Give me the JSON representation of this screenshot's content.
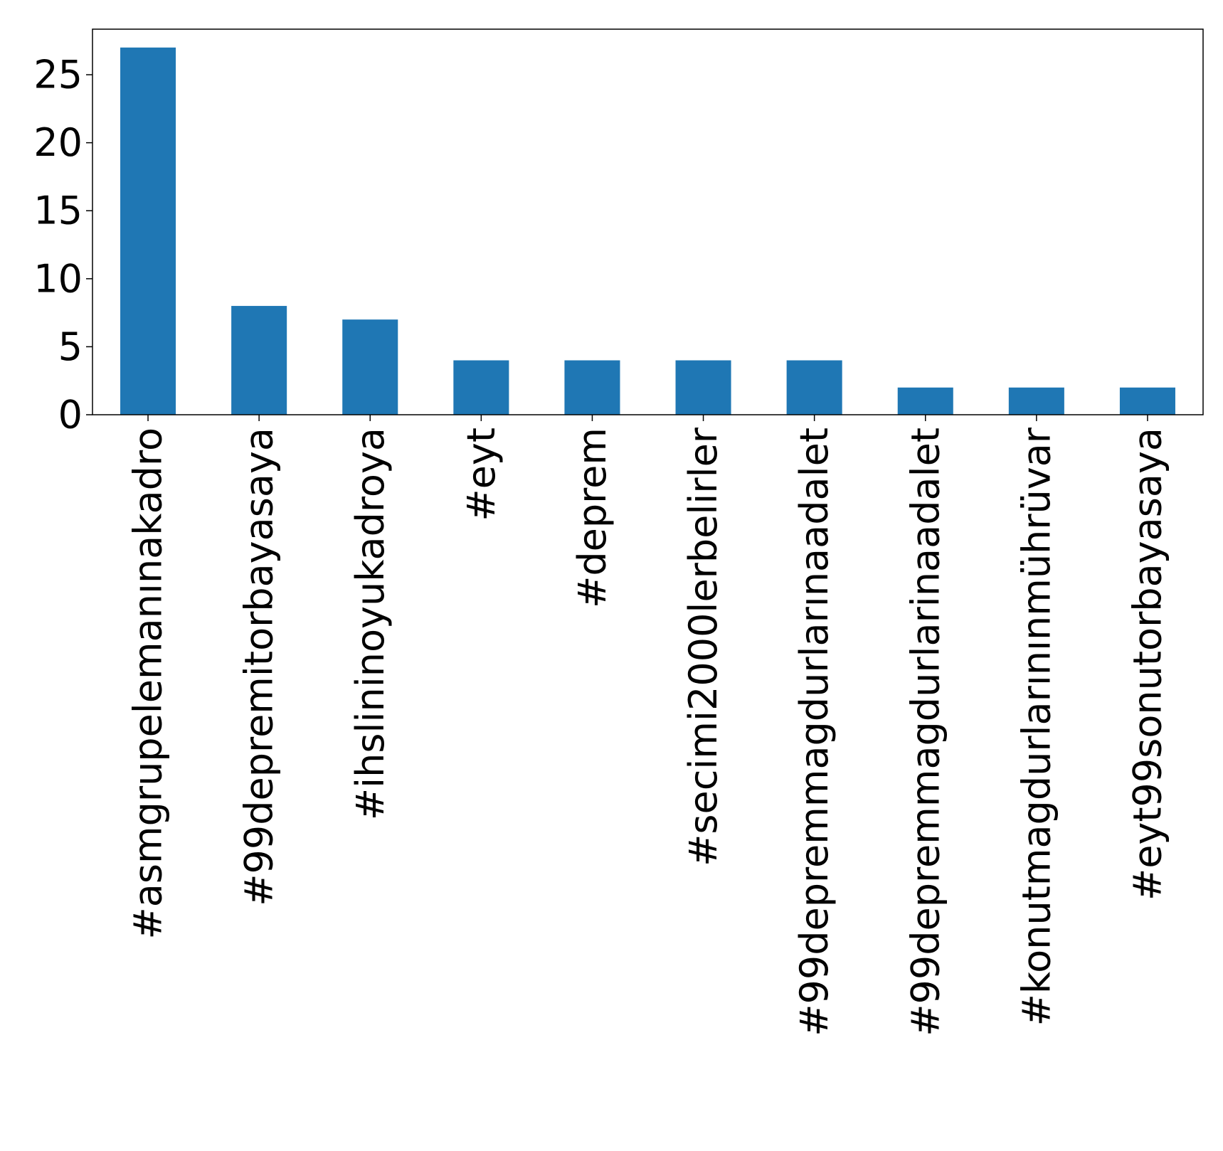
{
  "chart_data": {
    "type": "bar",
    "title": "",
    "xlabel": "",
    "ylabel": "",
    "categories": [
      "#asmgrupelemanınakadro",
      "#99depremitorbayasaya",
      "#ihslininoyukadroya",
      "#eyt",
      "#deprem",
      "#secimi2000lerbelirler",
      "#99depremmagdurlarınaadalet",
      "#99depremmagdurlarinaadalet",
      "#konutmagdurlarınınmührüvar",
      "#eyt99sonutorbayasaya"
    ],
    "values": [
      27,
      8,
      7,
      4,
      4,
      4,
      4,
      2,
      2,
      2
    ],
    "yticks": [
      "0",
      "5",
      "10",
      "15",
      "20",
      "25"
    ],
    "ylim": [
      0,
      28.35
    ],
    "grid": false,
    "legend": "none",
    "colors": {
      "bar": "#1f77b4",
      "axis": "#000000"
    }
  }
}
